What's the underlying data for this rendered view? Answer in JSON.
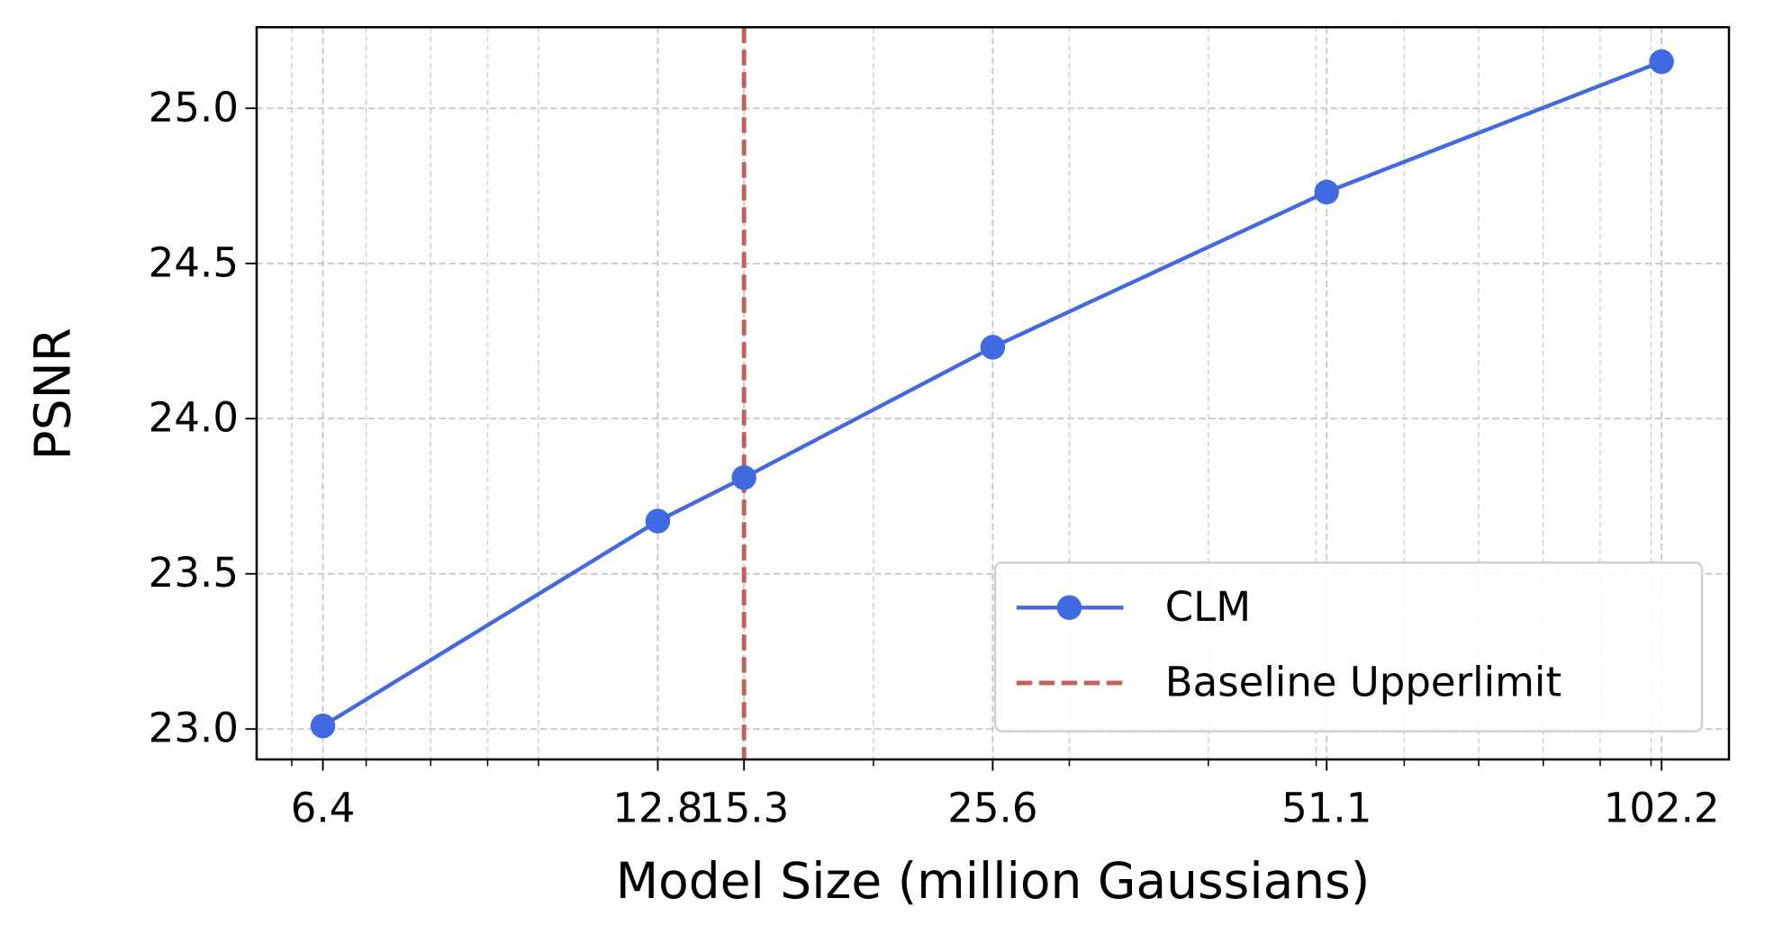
{
  "chart_data": {
    "type": "line",
    "xlabel": "Model Size (million Gaussians)",
    "ylabel": "PSNR",
    "x": [
      6.4,
      12.8,
      15.3,
      25.6,
      51.1,
      102.2
    ],
    "series": [
      {
        "name": "CLM",
        "color": "#4169e1",
        "values": [
          23.01,
          23.67,
          23.81,
          24.23,
          24.73,
          25.15
        ]
      }
    ],
    "vline": {
      "name": "Baseline Upperlimit",
      "x": 15.3,
      "color": "#c0615c",
      "style": "dashed"
    },
    "xscale": "log",
    "xlim": [
      5.58,
      117.5
    ],
    "xticks": [
      6.4,
      12.8,
      15.3,
      25.6,
      51.1,
      102.2
    ],
    "xminorticks": [
      6,
      7,
      8,
      9,
      10,
      20,
      30,
      40,
      50,
      60,
      70,
      80,
      90,
      100
    ],
    "ylim": [
      22.902,
      25.261
    ],
    "yticks": [
      {
        "value": 23,
        "label": "23.0"
      },
      {
        "value": 23.5,
        "label": "23.5"
      },
      {
        "value": 24,
        "label": "24.0"
      },
      {
        "value": 24.5,
        "label": "24.5"
      },
      {
        "value": 25,
        "label": "25.0"
      }
    ],
    "grid": true,
    "legend": "lower right"
  }
}
